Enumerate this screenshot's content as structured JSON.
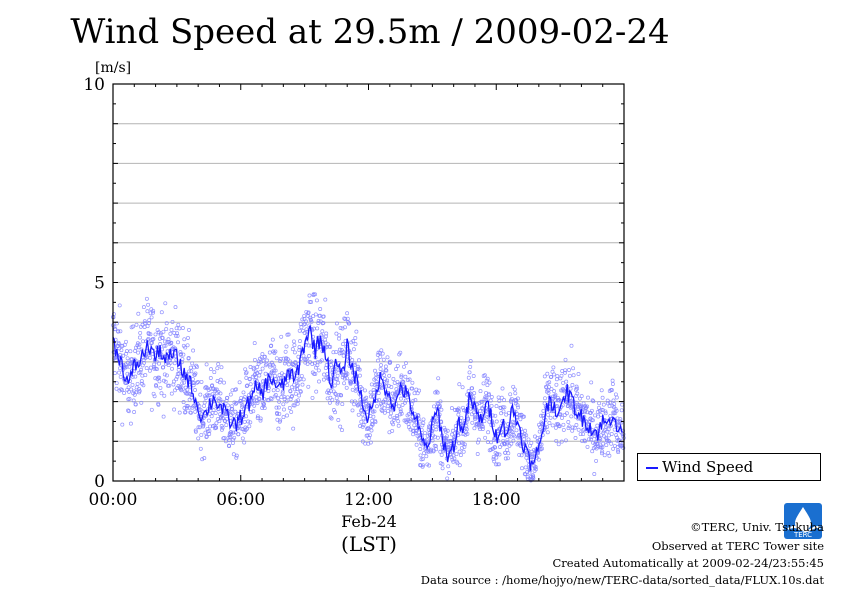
{
  "page": {
    "title": "Wind Speed at 29.5m / 2009-02-24"
  },
  "chart_data": {
    "type": "scatter",
    "title": "Wind Speed at 29.5m / 2009-02-24",
    "ylabel": "[m/s]",
    "ylim": [
      0,
      10
    ],
    "yticks": [
      "0",
      "5",
      "10"
    ],
    "xlim": [
      "00:00",
      "24:00"
    ],
    "xticks": [
      "00:00",
      "06:00",
      "12:00",
      "18:00"
    ],
    "xlabel_date": "Feb-24",
    "xlabel": "(LST)",
    "grid": true,
    "legend_position": "right",
    "series": [
      {
        "name": "Wind Speed",
        "style": "10-second samples (scatter) with running-mean line",
        "color": "#1a1aff",
        "scatter_color": "#8080ff",
        "x_hours": [
          0.0,
          0.25,
          0.5,
          0.75,
          1.0,
          1.25,
          1.5,
          1.75,
          2.0,
          2.25,
          2.5,
          2.75,
          3.0,
          3.25,
          3.5,
          3.75,
          4.0,
          4.25,
          4.5,
          4.75,
          5.0,
          5.25,
          5.5,
          5.75,
          6.0,
          6.25,
          6.5,
          6.75,
          7.0,
          7.25,
          7.5,
          7.75,
          8.0,
          8.25,
          8.5,
          8.75,
          9.0,
          9.25,
          9.5,
          9.75,
          10.0,
          10.25,
          10.5,
          10.75,
          11.0,
          11.25,
          11.5,
          11.75,
          12.0,
          12.25,
          12.5,
          12.75,
          13.0,
          13.25,
          13.5,
          13.75,
          14.0,
          14.25,
          14.5,
          14.75,
          15.0,
          15.25,
          15.5,
          15.75,
          16.0,
          16.25,
          16.5,
          16.75,
          17.0,
          17.25,
          17.5,
          17.75,
          18.0,
          18.25,
          18.5,
          18.75,
          19.0,
          19.25,
          19.5,
          19.75,
          20.0,
          20.25,
          20.5,
          20.75,
          21.0,
          21.25,
          21.5,
          21.75,
          22.0,
          22.25,
          22.5,
          22.75,
          23.0,
          23.25,
          23.5,
          23.75
        ],
        "values": [
          3.5,
          3.2,
          2.8,
          2.4,
          2.9,
          3.0,
          3.3,
          3.4,
          3.1,
          3.3,
          3.0,
          3.2,
          3.1,
          2.8,
          2.6,
          2.3,
          1.8,
          1.6,
          1.9,
          2.1,
          1.9,
          1.7,
          1.5,
          1.4,
          1.6,
          1.9,
          2.0,
          2.4,
          2.2,
          2.5,
          2.6,
          2.3,
          2.4,
          2.8,
          2.5,
          2.9,
          3.5,
          3.8,
          3.3,
          3.6,
          3.2,
          2.4,
          3.0,
          2.6,
          3.4,
          2.8,
          2.5,
          1.9,
          1.6,
          1.9,
          2.6,
          2.4,
          2.2,
          1.8,
          2.4,
          2.2,
          1.9,
          1.5,
          1.0,
          0.8,
          1.4,
          1.8,
          1.0,
          0.6,
          0.9,
          1.5,
          1.3,
          2.1,
          1.8,
          1.5,
          1.9,
          1.7,
          1.1,
          1.5,
          1.2,
          1.8,
          1.5,
          1.0,
          0.6,
          0.3,
          0.9,
          1.5,
          2.1,
          1.9,
          1.6,
          2.3,
          2.1,
          1.8,
          1.6,
          1.5,
          1.3,
          1.2,
          1.5,
          1.4,
          1.8,
          1.2
        ]
      }
    ]
  },
  "footer": {
    "copyright": "©TERC, Univ. Tsukuba",
    "observed": "Observed at TERC Tower site",
    "created": "Created Automatically at 2009-02-24/23:55:45",
    "source": "Data source : /home/hojyo/new/TERC-data/sorted_data/FLUX.10s.dat",
    "logo_text": "TERC",
    "logo_color": "#1a6fd0"
  }
}
